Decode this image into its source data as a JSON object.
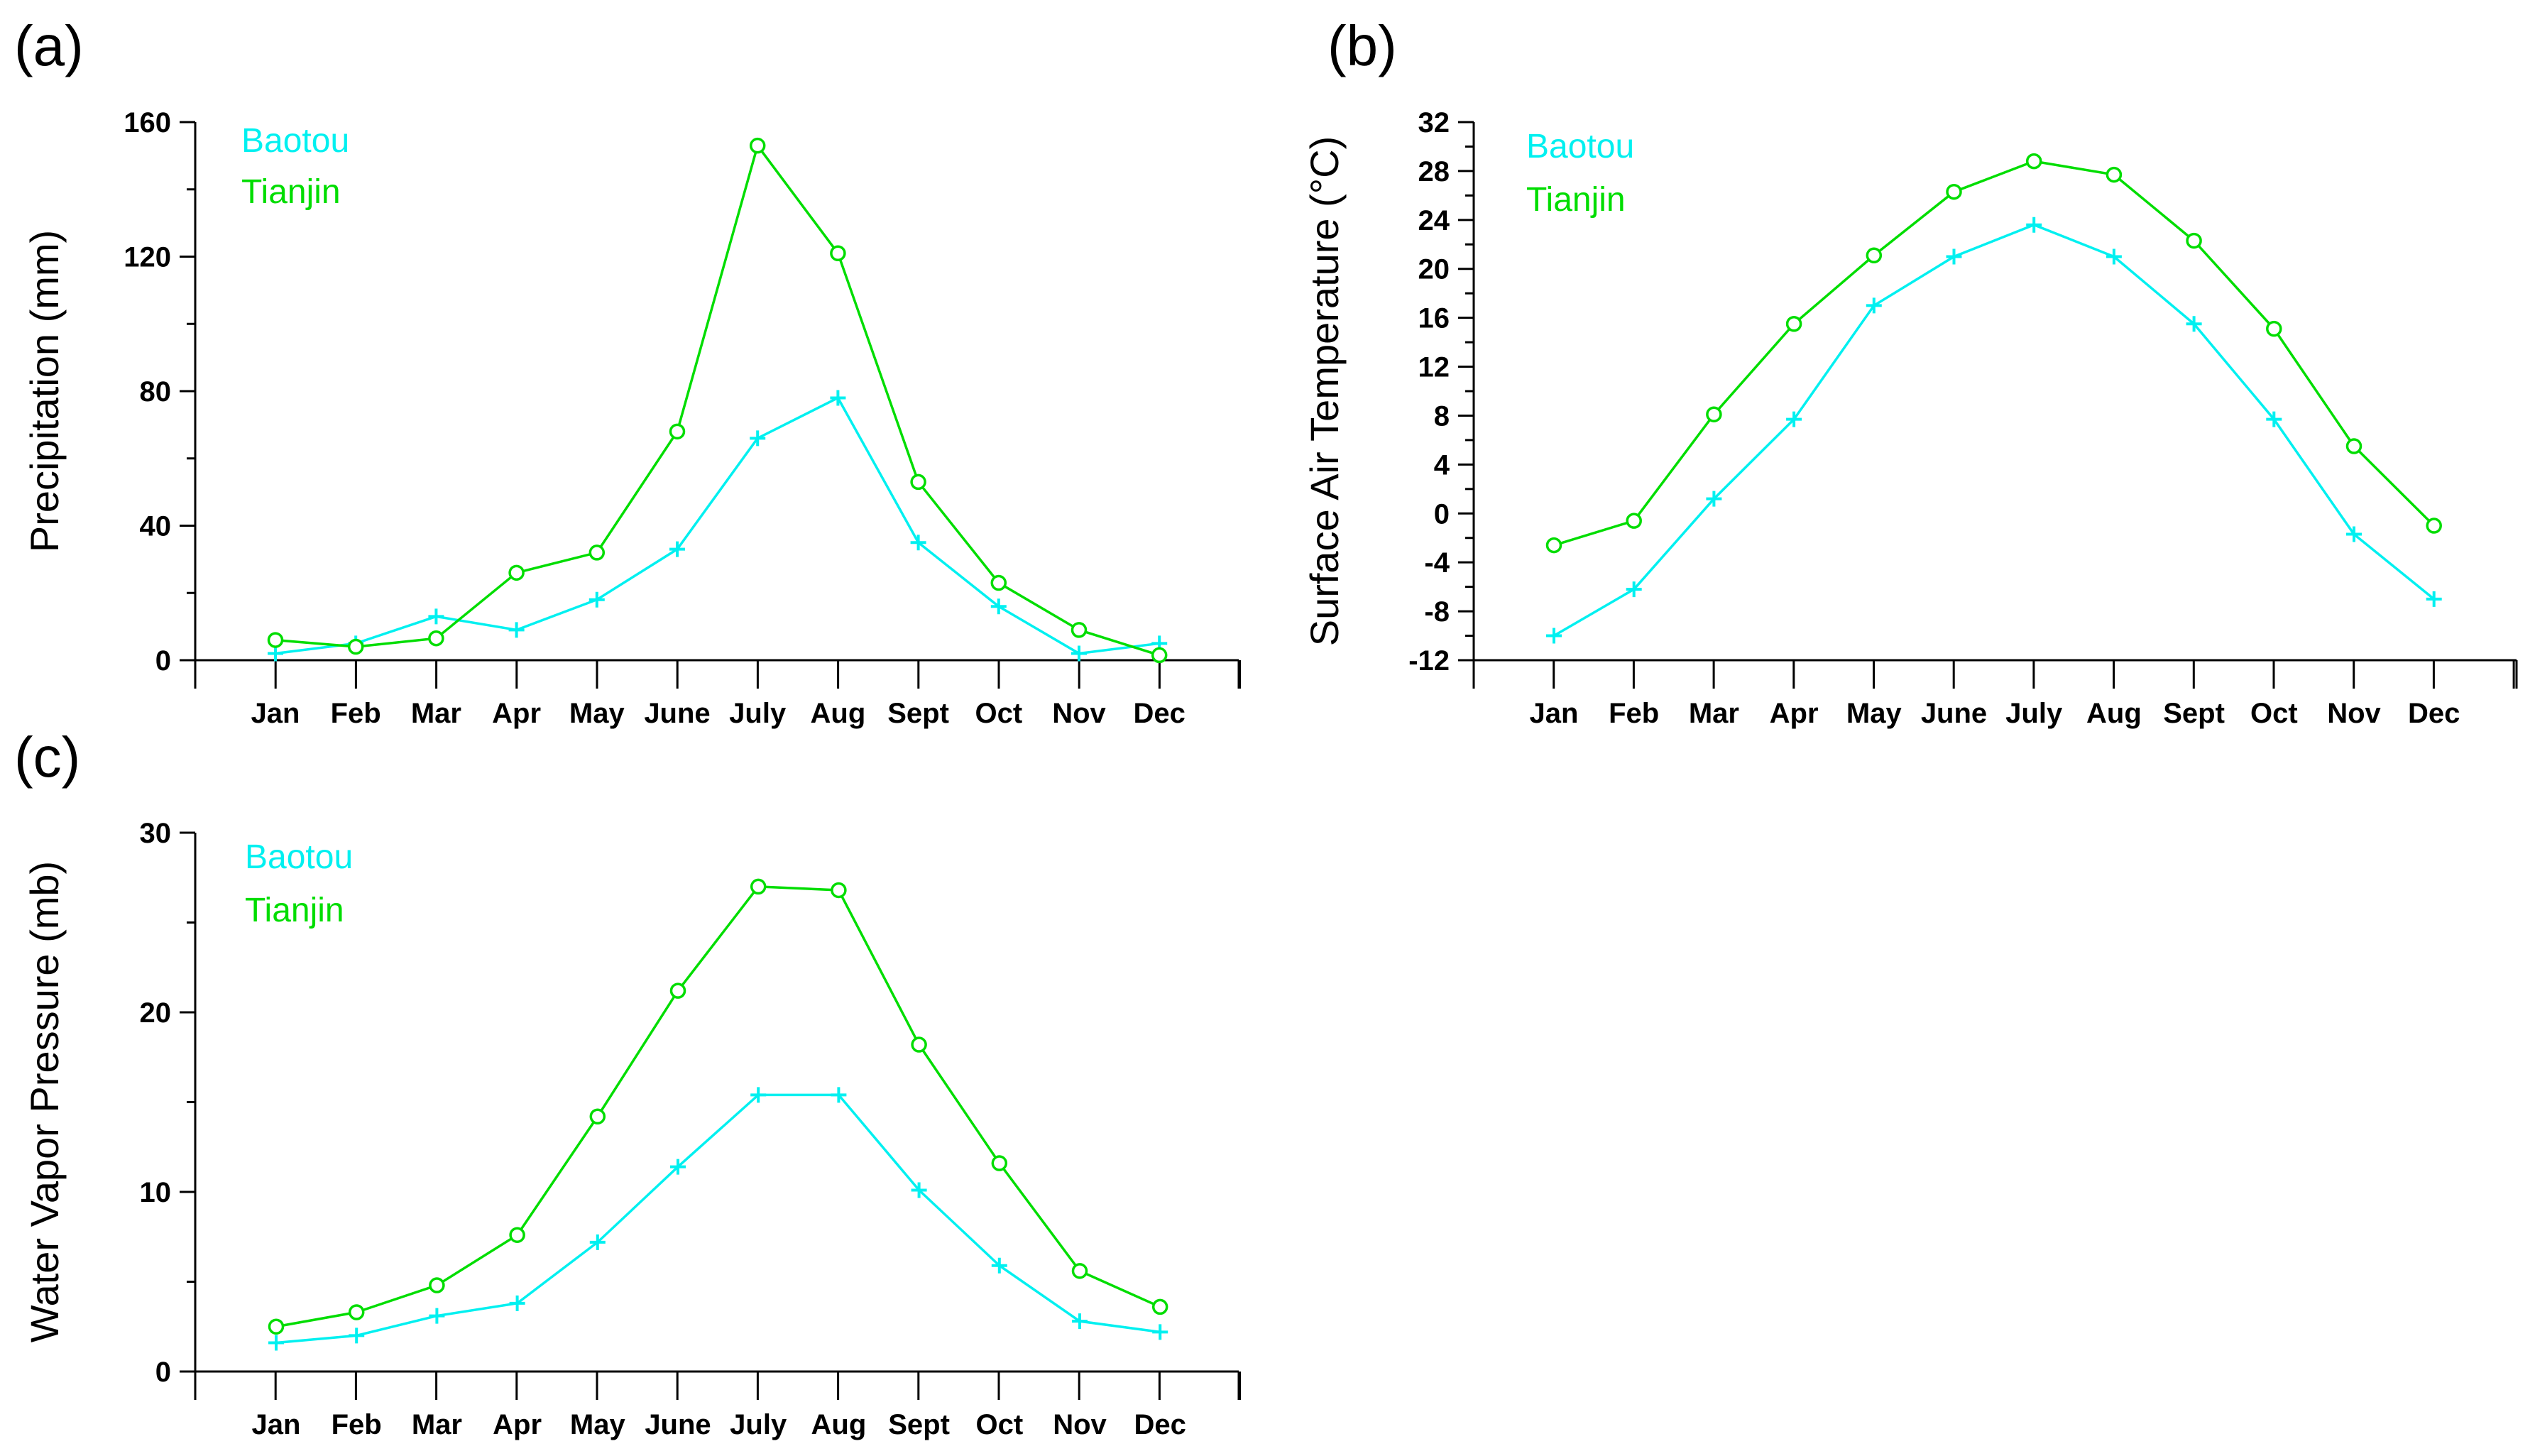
{
  "colors": {
    "baotou": "#00f0f0",
    "tianjin": "#00dd00",
    "axis": "#000000"
  },
  "chart_data": [
    {
      "type": "line",
      "panel": "(a)",
      "ylabel": "Precipitation (mm)",
      "xlabel": "",
      "ylim": [
        0,
        160
      ],
      "yticks": [
        0,
        40,
        80,
        120,
        160
      ],
      "yticklabels": [
        "0",
        "40",
        "80",
        "120",
        "160"
      ],
      "categories": [
        "Jan",
        "Feb",
        "Mar",
        "Apr",
        "May",
        "June",
        "July",
        "Aug",
        "Sept",
        "Oct",
        "Nov",
        "Dec"
      ],
      "legend": [
        "Baotou",
        "Tianjin"
      ],
      "legend_position": "top-left",
      "series": [
        {
          "name": "Baotou",
          "marker": "plus",
          "values": [
            2,
            5,
            13,
            9,
            18,
            33,
            66,
            78,
            35,
            16,
            2,
            5
          ]
        },
        {
          "name": "Tianjin",
          "marker": "circle",
          "values": [
            6,
            4,
            6.5,
            26,
            32,
            68,
            153,
            121,
            53,
            23,
            9,
            1.5
          ]
        }
      ]
    },
    {
      "type": "line",
      "panel": "(b)",
      "ylabel": "Surface Air Temperature (°C)",
      "xlabel": "",
      "ylim": [
        -12,
        32
      ],
      "yticks": [
        -12,
        -8,
        -4,
        0,
        4,
        8,
        12,
        16,
        20,
        24,
        28,
        32
      ],
      "yticklabels": [
        "-12",
        "-8",
        "-4",
        "0",
        "4",
        "8",
        "12",
        "16",
        "20",
        "24",
        "28",
        "32"
      ],
      "categories": [
        "Jan",
        "Feb",
        "Mar",
        "Apr",
        "May",
        "June",
        "July",
        "Aug",
        "Sept",
        "Oct",
        "Nov",
        "Dec"
      ],
      "legend": [
        "Baotou",
        "Tianjin"
      ],
      "legend_position": "top-left",
      "series": [
        {
          "name": "Baotou",
          "marker": "plus",
          "values": [
            -10,
            -6.2,
            1.2,
            7.7,
            17,
            21,
            23.6,
            21,
            15.5,
            7.7,
            -1.7,
            -7
          ]
        },
        {
          "name": "Tianjin",
          "marker": "circle",
          "values": [
            -2.6,
            -0.6,
            8.1,
            15.5,
            21.1,
            26.3,
            28.8,
            27.7,
            22.3,
            15.1,
            5.5,
            -1
          ]
        }
      ]
    },
    {
      "type": "line",
      "panel": "(c)",
      "ylabel": "Water Vapor Pressure (mb)",
      "xlabel": "",
      "ylim": [
        0,
        30
      ],
      "yticks": [
        0,
        10,
        20,
        30
      ],
      "yticklabels": [
        "0",
        "10",
        "20",
        "30"
      ],
      "categories": [
        "Jan",
        "Feb",
        "Mar",
        "Apr",
        "May",
        "June",
        "July",
        "Aug",
        "Sept",
        "Oct",
        "Nov",
        "Dec"
      ],
      "legend": [
        "Baotou",
        "Tianjin"
      ],
      "legend_position": "top-left",
      "series": [
        {
          "name": "Baotou",
          "marker": "plus",
          "values": [
            1.6,
            2.0,
            3.1,
            3.8,
            7.2,
            11.4,
            15.4,
            15.4,
            10.1,
            5.9,
            2.8,
            2.2
          ]
        },
        {
          "name": "Tianjin",
          "marker": "circle",
          "values": [
            2.5,
            3.3,
            4.8,
            7.6,
            14.2,
            21.2,
            27.0,
            26.8,
            18.2,
            11.6,
            5.6,
            3.6
          ]
        }
      ]
    }
  ]
}
